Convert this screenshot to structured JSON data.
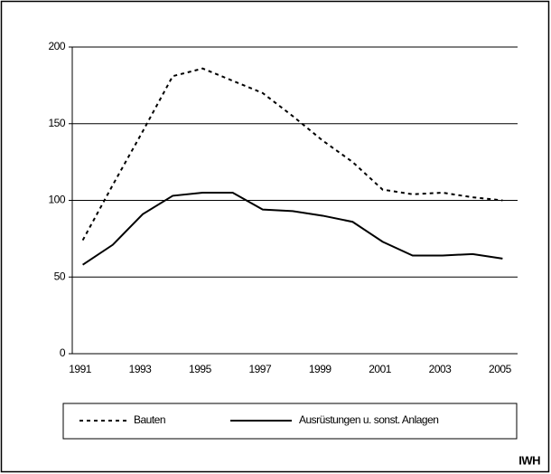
{
  "chart_data": {
    "type": "line",
    "categories": [
      "1991",
      null,
      "1993",
      null,
      "1995",
      null,
      "1997",
      null,
      "1999",
      null,
      "2001",
      null,
      "2003",
      null,
      "2005"
    ],
    "series": [
      {
        "name": "Bauten",
        "color": "#000000",
        "dash": "4,4",
        "values": [
          74,
          110,
          145,
          181,
          186,
          178,
          170,
          155,
          139,
          125,
          107,
          104,
          105,
          102,
          100
        ]
      },
      {
        "name": "Ausrüstungen u. sonst. Anlagen",
        "color": "#000000",
        "values": [
          58,
          71,
          91,
          103,
          105,
          105,
          94,
          93,
          90,
          86,
          73,
          64,
          64,
          65,
          62
        ]
      }
    ],
    "ylim": [
      0,
      200
    ],
    "yticks": [
      0,
      50,
      100,
      150,
      200
    ],
    "grid": true,
    "source": "IWH"
  }
}
